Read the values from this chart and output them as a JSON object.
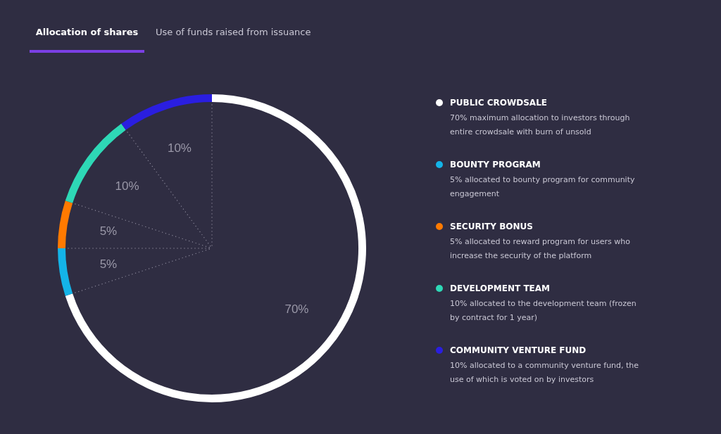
{
  "chart_data": {
    "type": "donut",
    "title": "Allocation of shares",
    "subtitle": "Use of funds raised from issuance",
    "categories": [
      "PUBLIC CROWDSALE",
      "BOUNTY PROGRAM",
      "SECURITY BONUS",
      "DEVELOPMENT TEAM",
      "COMMUNITY VENTURE FUND"
    ],
    "values": [
      70,
      5,
      5,
      10,
      10
    ],
    "colors": [
      "#ffffff",
      "#14b4e8",
      "#ff7a00",
      "#2ed8b6",
      "#2a1ee0"
    ],
    "value_labels": [
      "70%",
      "5%",
      "5%",
      "10%",
      "10%"
    ],
    "annotations": [
      "70% maximum allocation to investors through entire crowdsale with burn of unsold",
      "5% allocated to bounty program for community engagement",
      "5% allocated to reward program for users who increase the security of the platform",
      "10% allocated to the development team (frozen by contract for 1 year)",
      "10% allocated to a community venture fund, the use of which is voted on by investors"
    ],
    "legend": "right"
  }
}
